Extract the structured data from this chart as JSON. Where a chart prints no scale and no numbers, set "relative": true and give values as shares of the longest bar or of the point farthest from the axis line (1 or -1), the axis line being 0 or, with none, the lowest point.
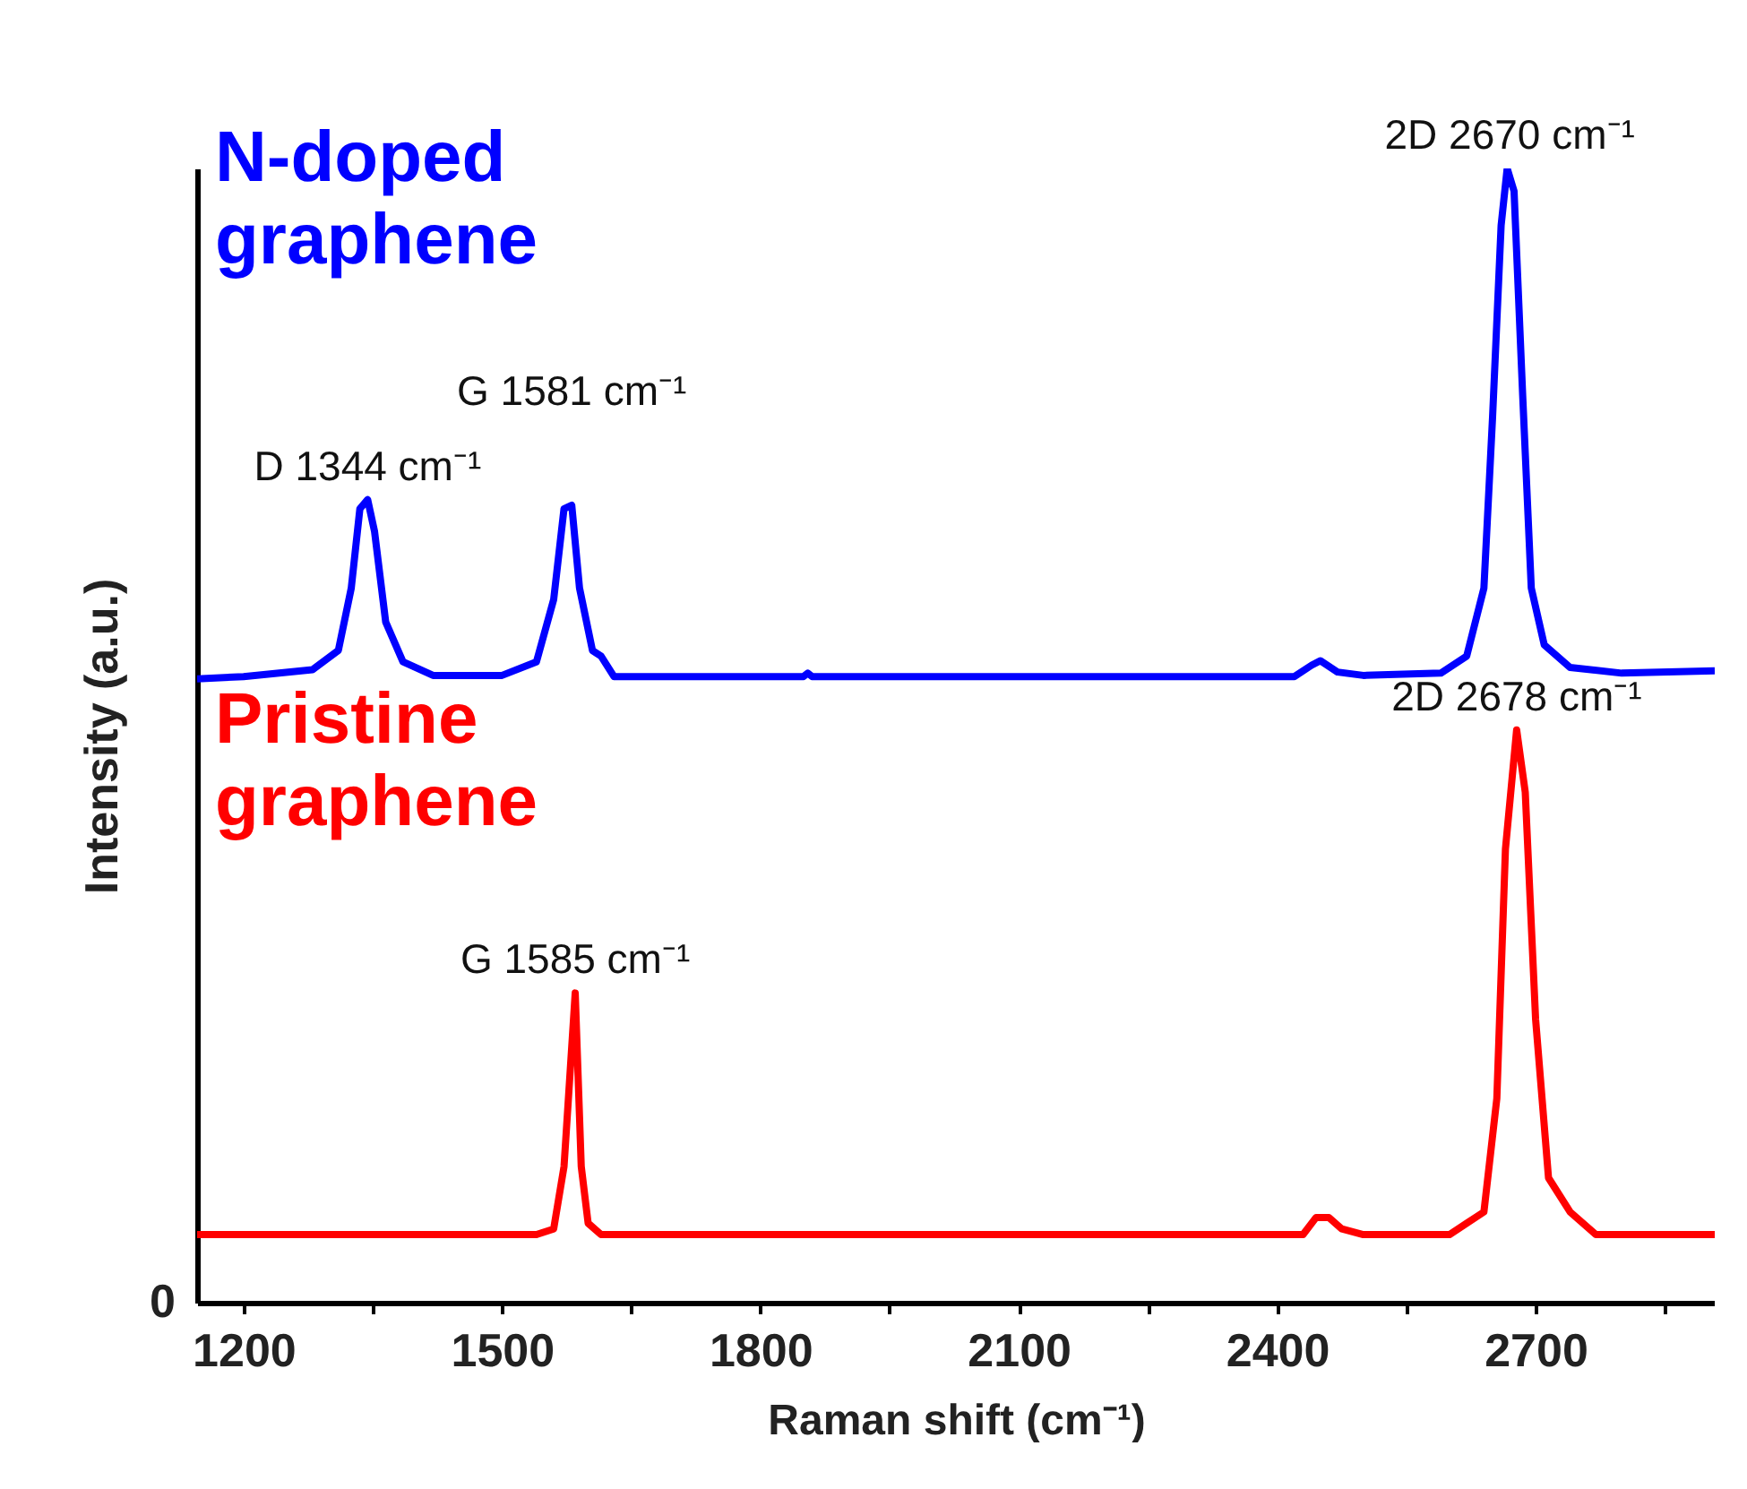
{
  "chart_data": {
    "type": "line",
    "relative": true,
    "xlabel": "Raman shift (cm⁻¹)",
    "ylabel": "Intensity (a.u.)",
    "xlim": [
      1146,
      2908
    ],
    "xticks": [
      1200,
      {
        "value": 1350,
        "label": null
      },
      1500,
      {
        "value": 1650,
        "label": null
      },
      1800,
      {
        "value": 1950,
        "label": null
      },
      2100,
      {
        "value": 2250,
        "label": null
      },
      2400,
      {
        "value": 2550,
        "label": null
      },
      2700,
      {
        "value": 2850,
        "label": null
      }
    ],
    "marker": "none",
    "line_style": "solid",
    "grid": false,
    "series": [
      {
        "name": "N-doped graphene",
        "color": "#0000ff",
        "x": [
          1146,
          1200,
          1280,
          1310,
          1325,
          1335,
          1344,
          1352,
          1365,
          1385,
          1420,
          1500,
          1540,
          1560,
          1572,
          1581,
          1590,
          1605,
          1615,
          1630,
          1850,
          1855,
          1860,
          2420,
          2440,
          2450,
          2470,
          2500,
          2590,
          2620,
          2640,
          2650,
          2660,
          2667,
          2675,
          2685,
          2695,
          2710,
          2740,
          2800,
          2908
        ],
        "values": [
          0.55,
          0.552,
          0.558,
          0.575,
          0.63,
          0.7,
          0.708,
          0.68,
          0.6,
          0.565,
          0.553,
          0.553,
          0.565,
          0.62,
          0.7,
          0.703,
          0.63,
          0.575,
          0.57,
          0.552,
          0.552,
          0.555,
          0.552,
          0.552,
          0.562,
          0.566,
          0.556,
          0.553,
          0.555,
          0.57,
          0.63,
          0.78,
          0.95,
          1.0,
          0.98,
          0.8,
          0.63,
          0.58,
          0.56,
          0.555,
          0.557
        ]
      },
      {
        "name": "Pristine graphene",
        "color": "#ff0000",
        "x": [
          1146,
          1540,
          1560,
          1572,
          1585,
          1592,
          1600,
          1615,
          2430,
          2445,
          2460,
          2475,
          2500,
          2600,
          2620,
          2640,
          2655,
          2665,
          2678,
          2688,
          2700,
          2715,
          2740,
          2770,
          2908
        ],
        "values": [
          0.06,
          0.06,
          0.065,
          0.12,
          0.273,
          0.12,
          0.07,
          0.06,
          0.06,
          0.075,
          0.075,
          0.065,
          0.06,
          0.06,
          0.07,
          0.08,
          0.18,
          0.4,
          0.505,
          0.45,
          0.25,
          0.11,
          0.08,
          0.06,
          0.06
        ]
      }
    ],
    "annotations": [
      {
        "text": "D 1344 cm⁻¹",
        "x": 1344,
        "y": 0.708
      },
      {
        "text": "G 1581 cm⁻¹",
        "x": 1581,
        "y": 0.703
      },
      {
        "text": "2D 2670 cm⁻¹",
        "x": 2670,
        "y": 1.0
      },
      {
        "text": "G 1585 cm⁻¹",
        "x": 1585,
        "y": 0.273
      },
      {
        "text": "2D 2678 cm⁻¹",
        "x": 2678,
        "y": 0.505
      },
      "0"
    ]
  }
}
